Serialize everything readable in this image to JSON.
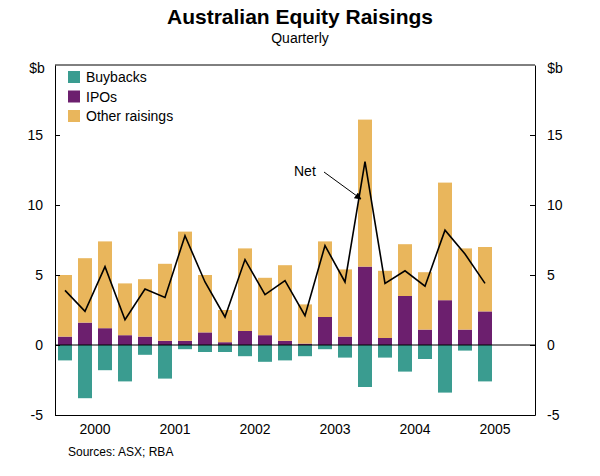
{
  "chart_data": {
    "type": "bar",
    "title": "Australian Equity Raisings",
    "subtitle": "Quarterly",
    "y_label": "$b",
    "source": "Sources: ASX; RBA",
    "categories": [
      null,
      "2000",
      null,
      null,
      null,
      "2001",
      null,
      null,
      null,
      "2002",
      null,
      null,
      null,
      "2003",
      null,
      null,
      null,
      "2004",
      null,
      null,
      null,
      "2005",
      null,
      null
    ],
    "stacked": true,
    "legend": "top-left",
    "ylim": [
      -5,
      20
    ],
    "yticks": [
      -5,
      0,
      5,
      10,
      15
    ],
    "series": [
      {
        "name": "Buybacks",
        "color": "#3a9c90",
        "values": [
          -1.1,
          -3.8,
          -1.8,
          -2.6,
          -0.7,
          -2.4,
          -0.3,
          -0.5,
          -0.5,
          -0.8,
          -1.2,
          -1.1,
          -0.8,
          -0.3,
          -0.9,
          -3.0,
          -0.9,
          -1.9,
          -1.0,
          -3.4,
          -0.4,
          -2.6,
          null,
          null
        ]
      },
      {
        "name": "IPOs",
        "color": "#6c1f6e",
        "values": [
          0.6,
          1.6,
          1.2,
          0.7,
          0.6,
          0.3,
          0.3,
          0.9,
          0.2,
          1.0,
          0.7,
          0.3,
          0.1,
          2.0,
          0.6,
          5.6,
          0.5,
          3.5,
          1.1,
          3.2,
          1.1,
          2.4,
          null,
          null
        ]
      },
      {
        "name": "Other raisings",
        "color": "#e9b65c",
        "values": [
          4.4,
          4.6,
          6.2,
          3.7,
          4.1,
          5.5,
          7.8,
          4.1,
          2.3,
          5.9,
          4.1,
          5.4,
          2.8,
          5.4,
          4.8,
          10.5,
          4.8,
          3.7,
          4.1,
          8.4,
          5.8,
          4.6,
          null,
          null
        ]
      },
      {
        "name": "Net",
        "type": "line",
        "color": "#000000",
        "values": [
          3.9,
          2.4,
          5.6,
          1.8,
          4.0,
          3.4,
          7.8,
          4.5,
          2.0,
          6.1,
          3.6,
          4.6,
          2.1,
          7.1,
          4.5,
          13.1,
          4.4,
          5.3,
          4.2,
          8.2,
          6.5,
          4.4,
          null,
          null
        ]
      }
    ]
  }
}
